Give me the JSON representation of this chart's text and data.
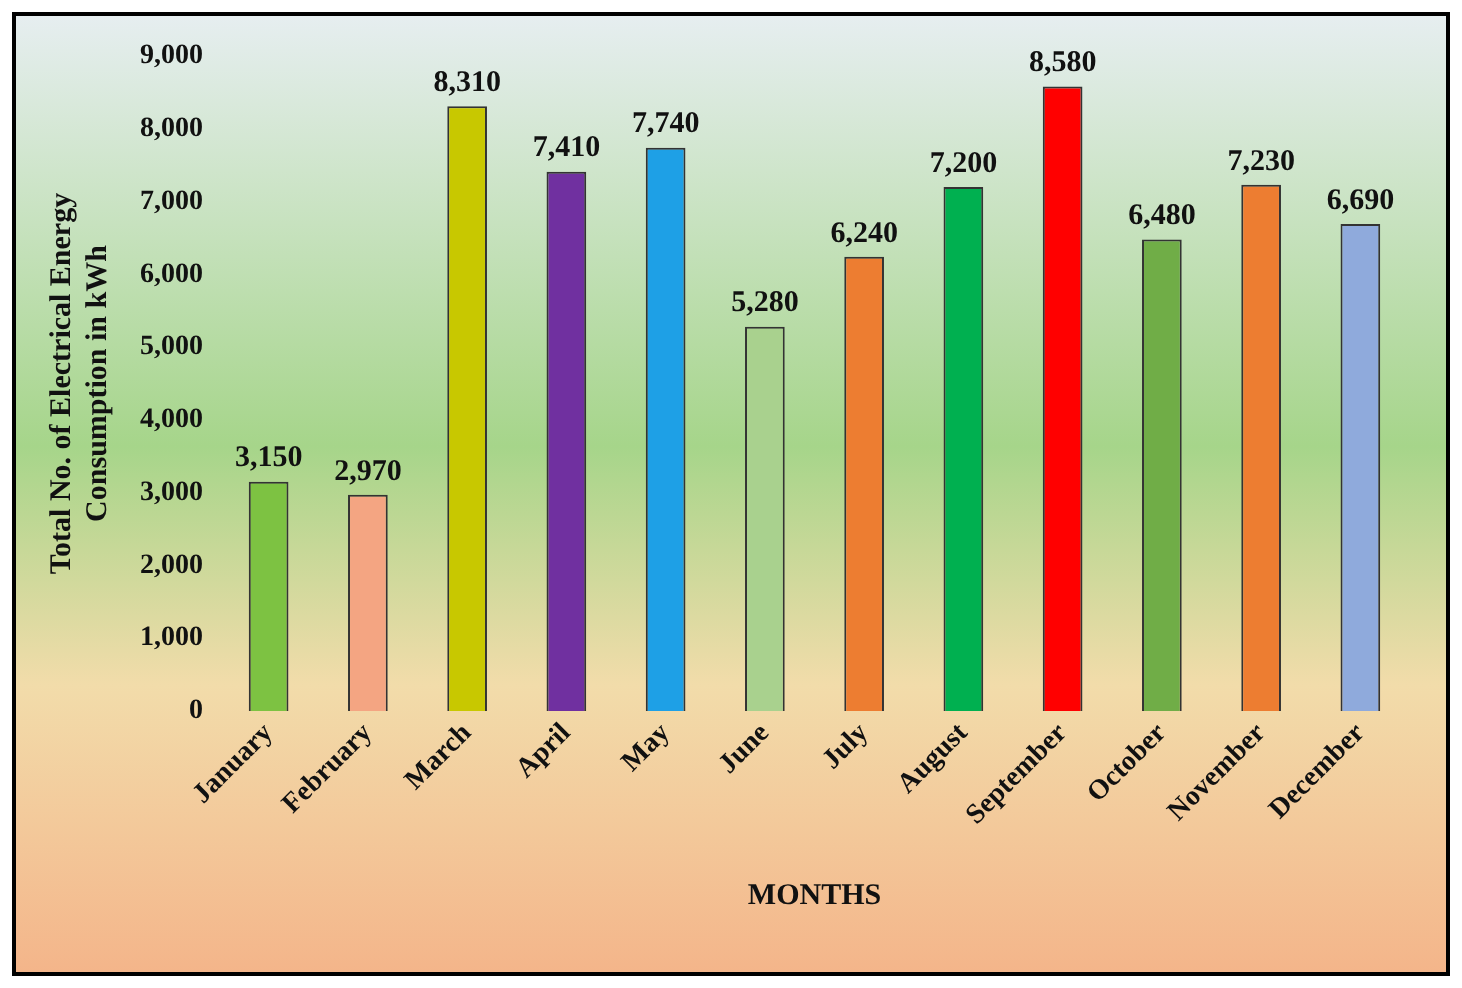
{
  "chart_data": {
    "type": "bar",
    "xlabel": "MONTHS",
    "ylabel": "Total No. of Electrical Energy Consumption in kWh",
    "categories": [
      "January",
      "February",
      "March",
      "April",
      "May",
      "June",
      "July",
      "August",
      "September",
      "October",
      "November",
      "December"
    ],
    "values": [
      3150,
      2970,
      8310,
      7410,
      7740,
      5280,
      6240,
      7200,
      8580,
      6480,
      7230,
      6690
    ],
    "value_labels": [
      "3,150",
      "2,970",
      "8,310",
      "7,410",
      "7,740",
      "5,280",
      "6,240",
      "7,200",
      "8,580",
      "6,480",
      "7,230",
      "6,690"
    ],
    "colors": [
      "#7dc242",
      "#f4a582",
      "#c8c800",
      "#7030a0",
      "#1ea0e6",
      "#a9d18e",
      "#ed7d31",
      "#00b050",
      "#ff0000",
      "#70ad47",
      "#ed7d31",
      "#8faadc"
    ],
    "ylim": [
      0,
      9000
    ],
    "yticks": [
      {
        "value": 0,
        "label": "0"
      },
      {
        "value": 1000,
        "label": "1,000"
      },
      {
        "value": 2000,
        "label": "2,000"
      },
      {
        "value": 3000,
        "label": "3,000"
      },
      {
        "value": 4000,
        "label": "4,000"
      },
      {
        "value": 5000,
        "label": "5,000"
      },
      {
        "value": 6000,
        "label": "6,000"
      },
      {
        "value": 7000,
        "label": "7,000"
      },
      {
        "value": 8000,
        "label": "8,000"
      },
      {
        "value": 9000,
        "label": "9,000"
      }
    ],
    "grid": false,
    "legend": false
  }
}
